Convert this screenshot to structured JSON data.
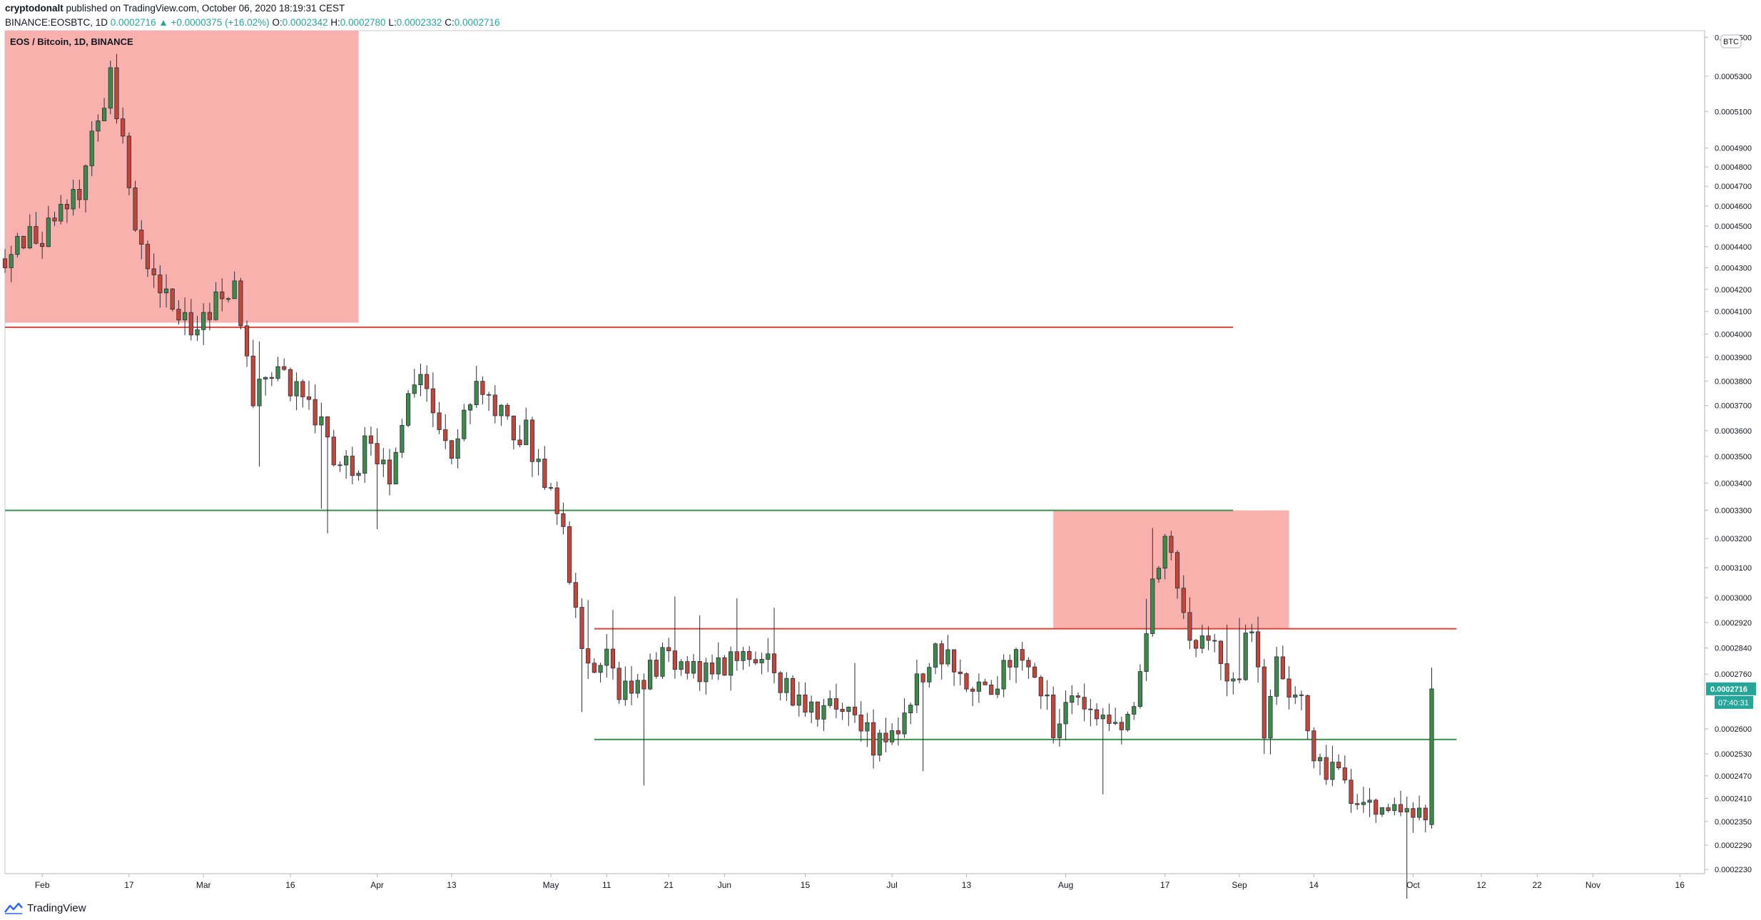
{
  "header": {
    "author": "cryptodonalt",
    "published_text": "published on TradingView.com, October 06, 2020 18:19:31 CEST",
    "symbol_line": "BINANCE:EOSBTC, 1D",
    "last": "0.0002716",
    "change": "▲ +0.0000375 (+16.02%)",
    "o_label": "O:",
    "o_value": "0.0002342",
    "h_label": "H:",
    "h_value": "0.0002780",
    "l_label": "L:",
    "l_value": "0.0002332",
    "c_label": "C:",
    "c_value": "0.0002716"
  },
  "footer": {
    "brand": "TradingView"
  },
  "colors": {
    "up": "#3d8b4a",
    "down": "#c4463b",
    "zone": "#f8a8a4",
    "resistance": "#d9453b",
    "support": "#3f8f50",
    "price_label_bg": "#26a69a",
    "axis_text": "#131722"
  },
  "chart_data": {
    "type": "candlestick",
    "title": "EOS / Bitcoin, 1D, BINANCE",
    "currency_badge": "BTC",
    "y_scale": "log",
    "ylim": [
      0.000222,
      0.000557
    ],
    "xlim": [
      0,
      274
    ],
    "last_price_label": "0.0002716",
    "countdown_label": "07:40:31",
    "y_ticks": [
      {
        "v": 0.000553,
        "label": "0.0005500"
      },
      {
        "v": 0.00053,
        "label": "0.0005300"
      },
      {
        "v": 0.00051,
        "label": "0.0005100"
      },
      {
        "v": 0.00049,
        "label": "0.0004900"
      },
      {
        "v": 0.00048,
        "label": "0.0004800"
      },
      {
        "v": 0.00047,
        "label": "0.0004700"
      },
      {
        "v": 0.00046,
        "label": "0.0004600"
      },
      {
        "v": 0.00045,
        "label": "0.0004500"
      },
      {
        "v": 0.00044,
        "label": "0.0004400"
      },
      {
        "v": 0.00043,
        "label": "0.0004300"
      },
      {
        "v": 0.00042,
        "label": "0.0004200"
      },
      {
        "v": 0.00041,
        "label": "0.0004100"
      },
      {
        "v": 0.0004,
        "label": "0.0004000"
      },
      {
        "v": 0.00039,
        "label": "0.0003900"
      },
      {
        "v": 0.00038,
        "label": "0.0003800"
      },
      {
        "v": 0.00037,
        "label": "0.0003700"
      },
      {
        "v": 0.00036,
        "label": "0.0003600"
      },
      {
        "v": 0.00035,
        "label": "0.0003500"
      },
      {
        "v": 0.00034,
        "label": "0.0003400"
      },
      {
        "v": 0.00033,
        "label": "0.0003300"
      },
      {
        "v": 0.00032,
        "label": "0.0003200"
      },
      {
        "v": 0.00031,
        "label": "0.0003100"
      },
      {
        "v": 0.0003,
        "label": "0.0003000"
      },
      {
        "v": 0.000292,
        "label": "0.0002920"
      },
      {
        "v": 0.000284,
        "label": "0.0002840"
      },
      {
        "v": 0.000276,
        "label": "0.0002760"
      },
      {
        "v": 0.00026,
        "label": "0.0002600"
      },
      {
        "v": 0.000253,
        "label": "0.0002530"
      },
      {
        "v": 0.000247,
        "label": "0.0002470"
      },
      {
        "v": 0.000241,
        "label": "0.0002410"
      },
      {
        "v": 0.000235,
        "label": "0.0002350"
      },
      {
        "v": 0.000229,
        "label": "0.0002290"
      },
      {
        "v": 0.000223,
        "label": "0.0002230"
      }
    ],
    "x_ticks": [
      {
        "day": 6,
        "label": "Feb"
      },
      {
        "day": 20,
        "label": "17"
      },
      {
        "day": 32,
        "label": "Mar"
      },
      {
        "day": 46,
        "label": "16"
      },
      {
        "day": 60,
        "label": "Apr"
      },
      {
        "day": 72,
        "label": "13"
      },
      {
        "day": 88,
        "label": "May"
      },
      {
        "day": 97,
        "label": "11"
      },
      {
        "day": 107,
        "label": "21"
      },
      {
        "day": 116,
        "label": "Jun"
      },
      {
        "day": 129,
        "label": "15"
      },
      {
        "day": 143,
        "label": "Jul"
      },
      {
        "day": 155,
        "label": "13"
      },
      {
        "day": 171,
        "label": "Aug"
      },
      {
        "day": 187,
        "label": "17"
      },
      {
        "day": 199,
        "label": "Sep"
      },
      {
        "day": 211,
        "label": "14"
      },
      {
        "day": 227,
        "label": "Oct"
      },
      {
        "day": 238,
        "label": "12"
      },
      {
        "day": 247,
        "label": "22"
      },
      {
        "day": 256,
        "label": "Nov"
      },
      {
        "day": 270,
        "label": "16"
      }
    ],
    "zones": [
      {
        "x_start": 0,
        "x_end": 57,
        "y_low": 0.000405,
        "y_high": 0.000557
      },
      {
        "x_start": 169,
        "x_end": 207,
        "y_low": 0.00029,
        "y_high": 0.00033
      }
    ],
    "levels": [
      {
        "y": 0.000403,
        "x_start": 0,
        "x_end": 198,
        "kind": "resistance"
      },
      {
        "y": 0.00033,
        "x_start": 0,
        "x_end": 198,
        "kind": "support"
      },
      {
        "y": 0.00029,
        "x_start": 95,
        "x_end": 234,
        "kind": "resistance"
      },
      {
        "y": 0.000257,
        "x_start": 95,
        "x_end": 234,
        "kind": "support"
      }
    ],
    "anchors": [
      [
        0,
        0.00043
      ],
      [
        4,
        0.000445
      ],
      [
        8,
        0.00045
      ],
      [
        12,
        0.00047
      ],
      [
        17,
        0.00053
      ],
      [
        19,
        0.00049
      ],
      [
        22,
        0.00044
      ],
      [
        25,
        0.00042
      ],
      [
        28,
        0.00041
      ],
      [
        30,
        0.000405
      ],
      [
        34,
        0.000415
      ],
      [
        37,
        0.00042
      ],
      [
        40,
        0.000375
      ],
      [
        43,
        0.000385
      ],
      [
        47,
        0.000378
      ],
      [
        51,
        0.00036
      ],
      [
        55,
        0.000345
      ],
      [
        58,
        0.000352
      ],
      [
        62,
        0.000343
      ],
      [
        65,
        0.00038
      ],
      [
        68,
        0.000375
      ],
      [
        72,
        0.000355
      ],
      [
        75,
        0.000375
      ],
      [
        78,
        0.000375
      ],
      [
        81,
        0.000365
      ],
      [
        84,
        0.000358
      ],
      [
        87,
        0.00034
      ],
      [
        90,
        0.00032
      ],
      [
        93,
        0.00028
      ],
      [
        96,
        0.000282
      ],
      [
        100,
        0.00027
      ],
      [
        104,
        0.000278
      ],
      [
        108,
        0.000282
      ],
      [
        112,
        0.000277
      ],
      [
        116,
        0.00028
      ],
      [
        120,
        0.000285
      ],
      [
        123,
        0.00028
      ],
      [
        126,
        0.000272
      ],
      [
        130,
        0.000268
      ],
      [
        134,
        0.000265
      ],
      [
        137,
        0.000262
      ],
      [
        140,
        0.000256
      ],
      [
        143,
        0.000258
      ],
      [
        147,
        0.000275
      ],
      [
        150,
        0.000284
      ],
      [
        153,
        0.000278
      ],
      [
        156,
        0.000272
      ],
      [
        159,
        0.000274
      ],
      [
        162,
        0.00028
      ],
      [
        166,
        0.000276
      ],
      [
        169,
        0.00026
      ],
      [
        172,
        0.000272
      ],
      [
        175,
        0.000266
      ],
      [
        178,
        0.000258
      ],
      [
        181,
        0.000262
      ],
      [
        183,
        0.000275
      ],
      [
        185,
        0.00031
      ],
      [
        187,
        0.00032
      ],
      [
        189,
        0.0003
      ],
      [
        191,
        0.000285
      ],
      [
        195,
        0.000283
      ],
      [
        198,
        0.00027
      ],
      [
        201,
        0.000292
      ],
      [
        203,
        0.000262
      ],
      [
        205,
        0.000286
      ],
      [
        207,
        0.00027
      ],
      [
        209,
        0.000265
      ],
      [
        211,
        0.000255
      ],
      [
        214,
        0.000248
      ],
      [
        218,
        0.000242
      ],
      [
        222,
        0.00024
      ],
      [
        226,
        0.000239
      ],
      [
        229,
        0.000235
      ],
      [
        230,
        0.000271
      ]
    ]
  }
}
